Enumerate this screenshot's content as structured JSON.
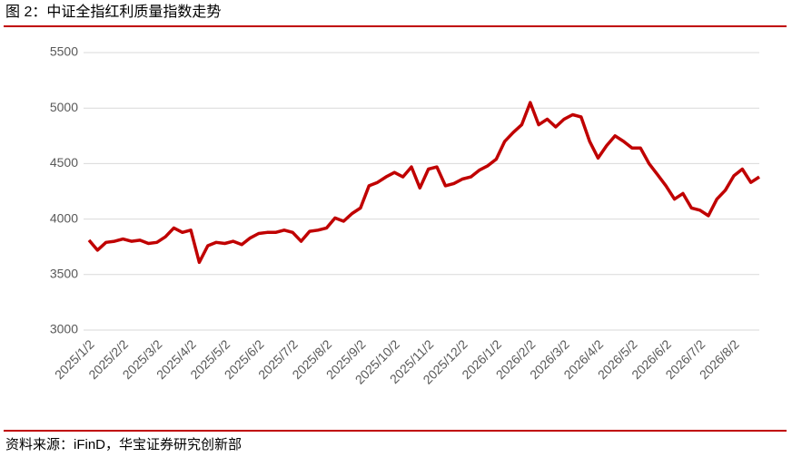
{
  "chart_data": {
    "type": "line",
    "title": "图 2：中证全指红利质量指数走势",
    "source": "资料来源：iFinD，华宝证券研究创新部",
    "categories": [
      "2025/1/2",
      null,
      null,
      null,
      "2025/2/2",
      null,
      null,
      null,
      "2025/3/2",
      null,
      null,
      null,
      "2025/4/2",
      null,
      null,
      null,
      "2025/5/2",
      null,
      null,
      null,
      "2025/6/2",
      null,
      null,
      null,
      "2025/7/2",
      null,
      null,
      null,
      "2025/8/2",
      null,
      null,
      null,
      "2025/9/2",
      null,
      null,
      null,
      "2025/10/2",
      null,
      null,
      null,
      "2025/11/2",
      null,
      null,
      null,
      "2025/12/2",
      null,
      null,
      null,
      "2026/1/2",
      null,
      null,
      null,
      "2026/2/2",
      null,
      null,
      null,
      "2026/3/2",
      null,
      null,
      null,
      "2026/4/2",
      null,
      null,
      null,
      "2026/5/2",
      null,
      null,
      null,
      "2026/6/2",
      null,
      null,
      null,
      "2026/7/2",
      null,
      null,
      null,
      "2026/8/2",
      null,
      null,
      null
    ],
    "series": [
      {
        "name": "中证全指红利质量指数",
        "color": "#c00000",
        "values": [
          3810,
          3720,
          3790,
          3800,
          3820,
          3800,
          3810,
          3780,
          3790,
          3840,
          3920,
          3880,
          3900,
          3610,
          3760,
          3790,
          3780,
          3800,
          3770,
          3830,
          3870,
          3880,
          3880,
          3900,
          3880,
          3800,
          3890,
          3900,
          3920,
          4010,
          3980,
          4050,
          4100,
          4300,
          4330,
          4380,
          4420,
          4380,
          4470,
          4280,
          4450,
          4470,
          4300,
          4320,
          4360,
          4380,
          4440,
          4480,
          4540,
          4700,
          4780,
          4850,
          5050,
          4850,
          4900,
          4830,
          4900,
          4940,
          4920,
          4700,
          4550,
          4660,
          4750,
          4700,
          4640,
          4640,
          4500,
          4400,
          4300,
          4180,
          4230,
          4100,
          4080,
          4030,
          4180,
          4260,
          4390,
          4450,
          4330,
          4380
        ]
      }
    ],
    "ylim": [
      3000,
      5500
    ],
    "yticks": [
      3000,
      3500,
      4000,
      4500,
      5000,
      5500
    ],
    "grid": true
  }
}
